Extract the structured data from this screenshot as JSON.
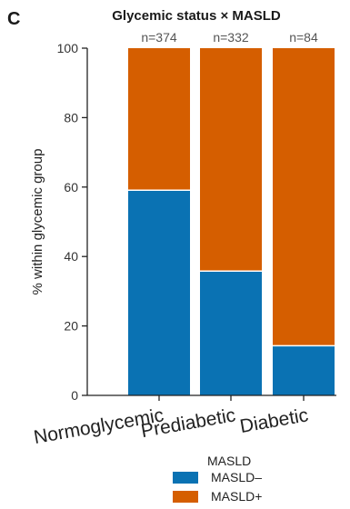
{
  "panel_label": "C",
  "chart_data": {
    "type": "bar",
    "stacked": true,
    "title": "Glycemic status × MASLD",
    "categories": [
      "Normoglycemic",
      "Prediabetic",
      "Diabetic"
    ],
    "annotations": [
      "n=374",
      "n=332",
      "n=84"
    ],
    "series": [
      {
        "name": "MASLD–",
        "values": [
          59.1,
          35.8,
          14.3
        ],
        "color": "#0a72b3"
      },
      {
        "name": "MASLD+",
        "values": [
          40.9,
          64.2,
          85.7
        ],
        "color": "#d55e00"
      }
    ],
    "xlabel": "",
    "ylabel": "% within glycemic group",
    "ylim": [
      0,
      100
    ],
    "yticks": [
      "0",
      "20",
      "40",
      "60",
      "80",
      "100"
    ],
    "grid": false,
    "legend": {
      "title": "MASLD",
      "placement": "bottom"
    }
  }
}
